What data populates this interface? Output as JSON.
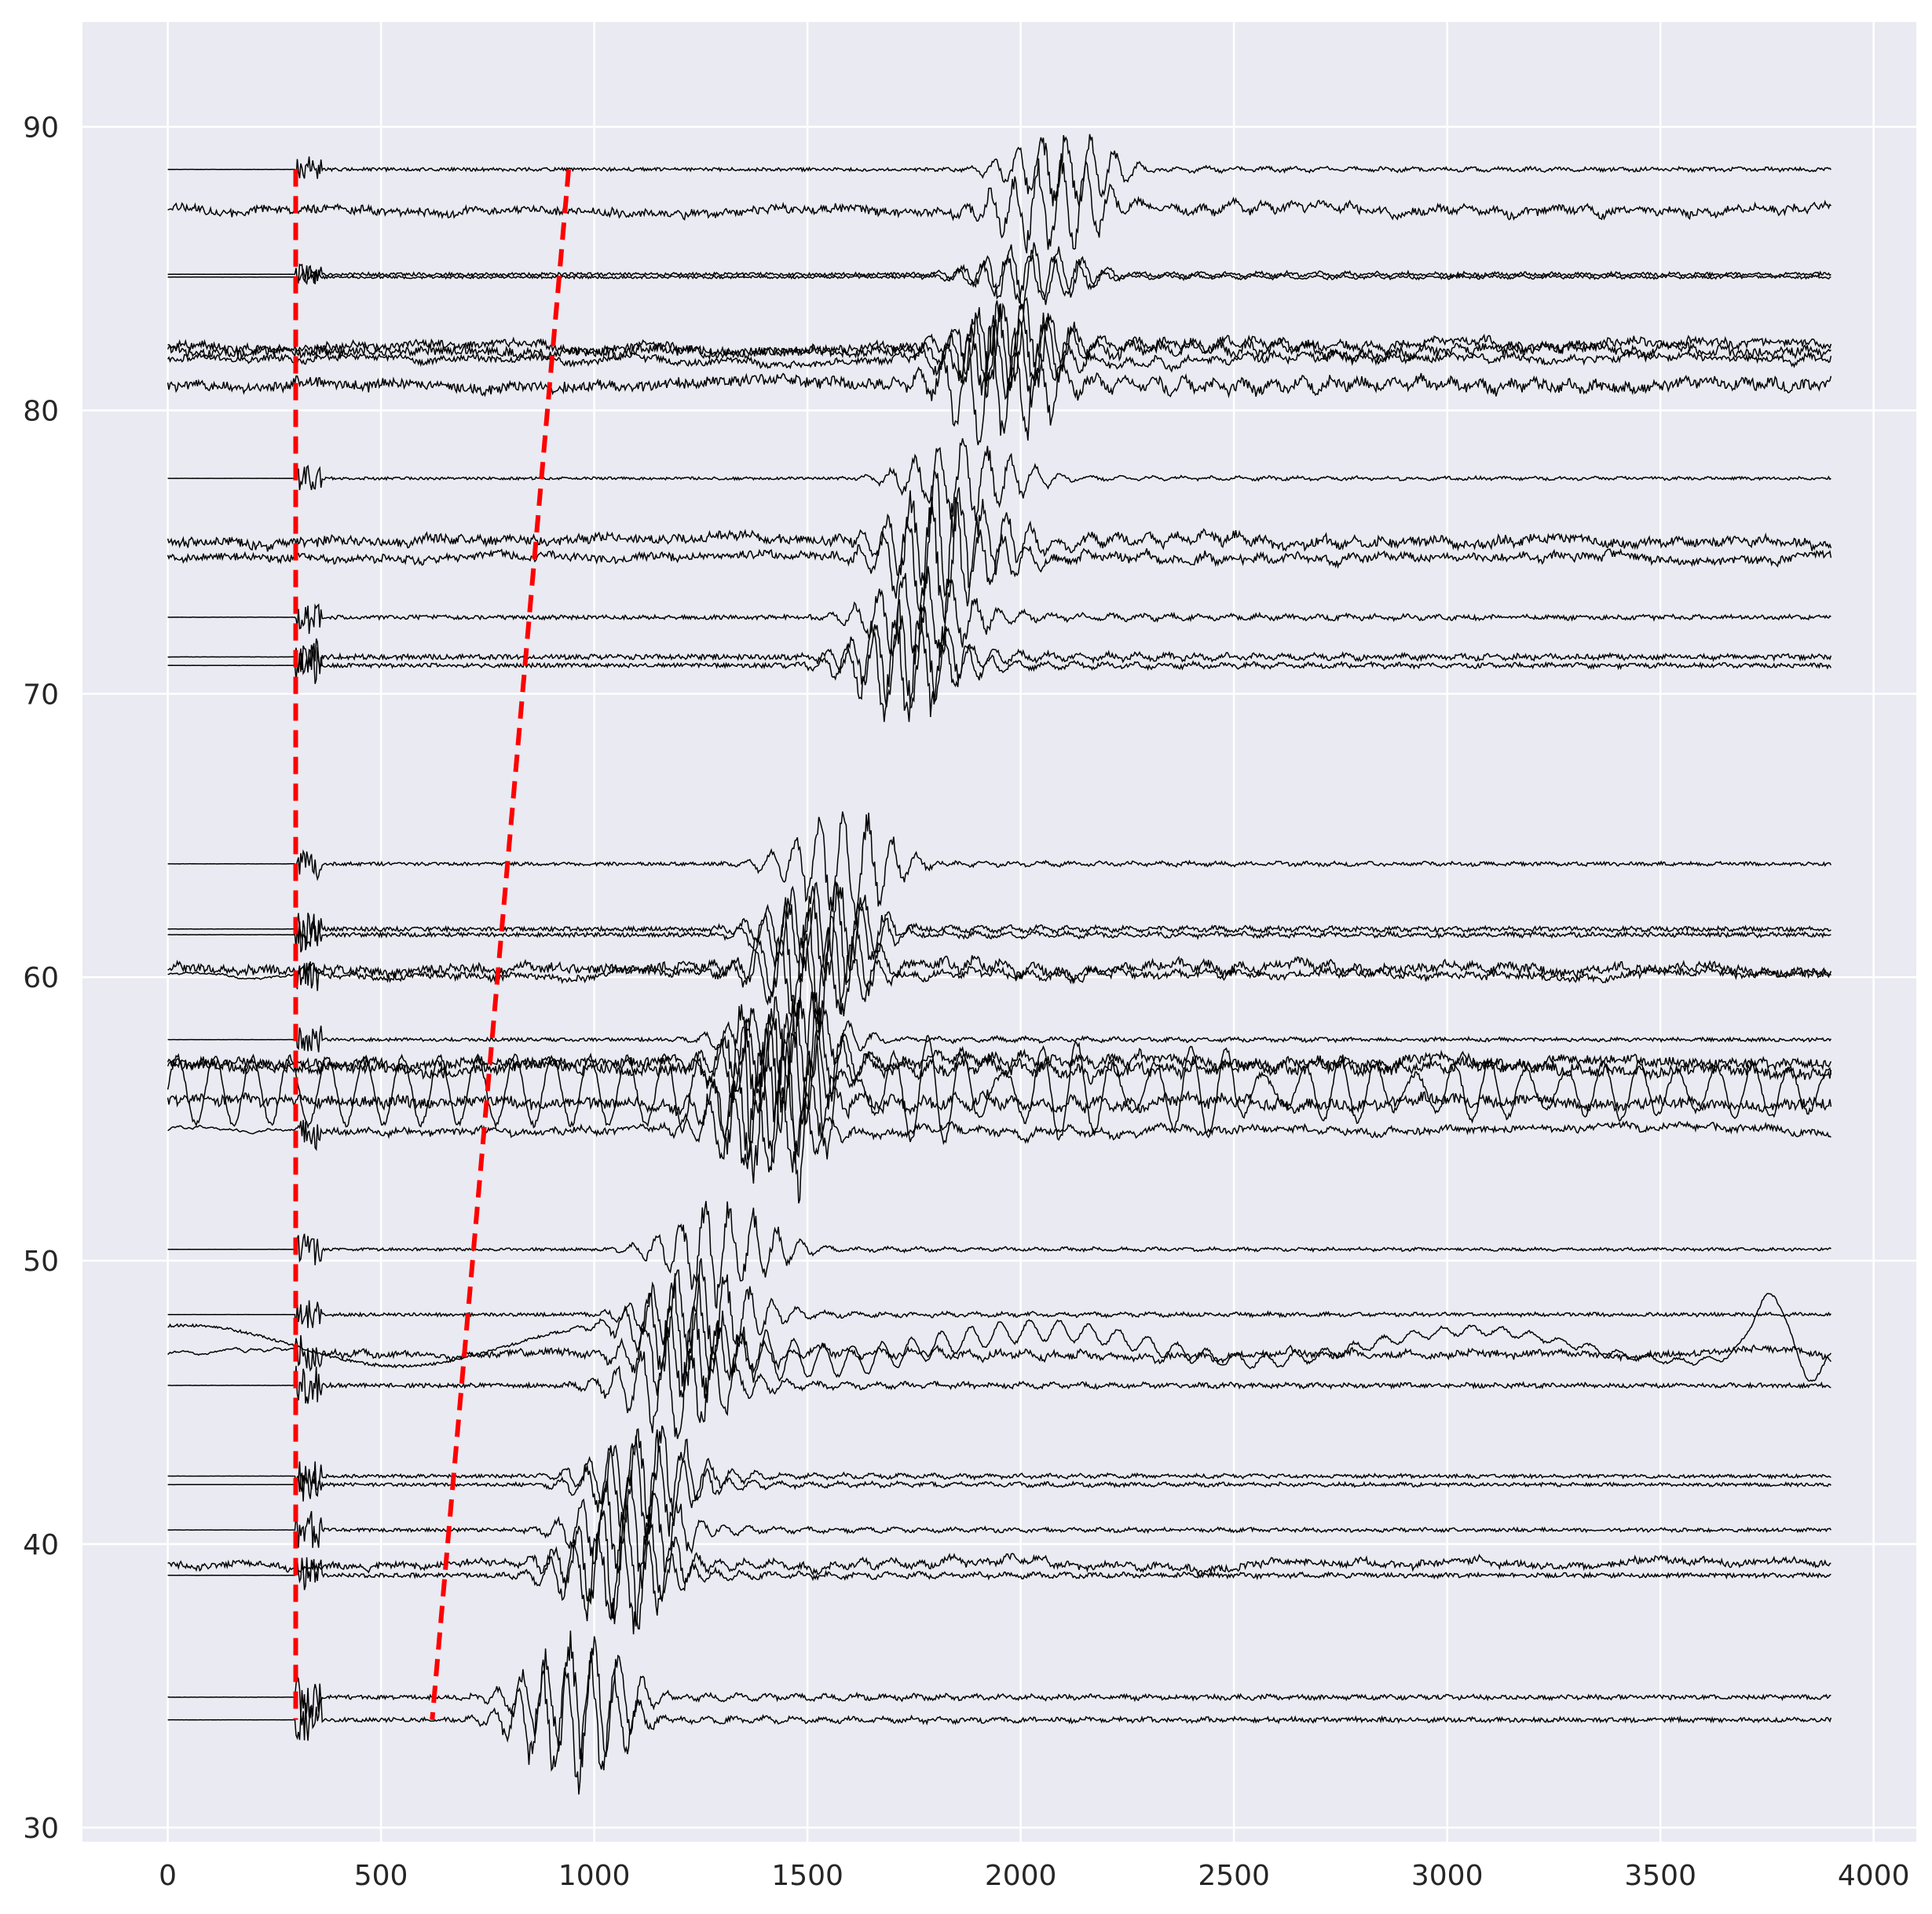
{
  "chart_data": {
    "type": "line",
    "title": "",
    "xlabel": "",
    "ylabel": "",
    "xlim": [
      -200,
      4100
    ],
    "ylim": [
      29.5,
      93.7
    ],
    "x_ticks": [
      0,
      500,
      1000,
      1500,
      2000,
      2500,
      3000,
      3500,
      4000
    ],
    "y_ticks": [
      30,
      40,
      50,
      60,
      70,
      80,
      90
    ],
    "grid": true,
    "legend": "none",
    "x_end": 3900,
    "traces": [
      {
        "base": 88.5,
        "amp": 0.12,
        "burst": 0.7,
        "onset": 300,
        "noise": "low"
      },
      {
        "base": 87.1,
        "amp": 0.25,
        "burst": 0.9,
        "onset": 0,
        "noise": "high"
      },
      {
        "base": 84.8,
        "amp": 0.12,
        "burst": 0.6,
        "onset": 300,
        "noise": "low"
      },
      {
        "base": 84.7,
        "amp": 0.1,
        "burst": 0.5,
        "onset": 300,
        "noise": "low"
      },
      {
        "base": 82.3,
        "amp": 0.25,
        "burst": 0.9,
        "onset": 0,
        "noise": "high"
      },
      {
        "base": 82.1,
        "amp": 0.3,
        "burst": 1.0,
        "onset": 0,
        "noise": "high"
      },
      {
        "base": 81.8,
        "amp": 0.2,
        "burst": 0.8,
        "onset": 0,
        "noise": "high"
      },
      {
        "base": 80.9,
        "amp": 0.35,
        "burst": 1.2,
        "onset": 0,
        "noise": "high"
      },
      {
        "base": 77.6,
        "amp": 0.1,
        "burst": 0.8,
        "onset": 300,
        "noise": "low"
      },
      {
        "base": 75.4,
        "amp": 0.3,
        "burst": 1.3,
        "onset": 0,
        "noise": "mid"
      },
      {
        "base": 74.8,
        "amp": 0.25,
        "burst": 1.2,
        "onset": 0,
        "noise": "mid"
      },
      {
        "base": 72.7,
        "amp": 0.15,
        "burst": 0.9,
        "onset": 300,
        "noise": "low"
      },
      {
        "base": 71.3,
        "amp": 0.18,
        "burst": 1.0,
        "onset": 300,
        "noise": "low"
      },
      {
        "base": 71.0,
        "amp": 0.15,
        "burst": 1.1,
        "onset": 300,
        "noise": "low"
      },
      {
        "base": 64.0,
        "amp": 0.12,
        "burst": 1.0,
        "onset": 300,
        "noise": "low"
      },
      {
        "base": 61.7,
        "amp": 0.15,
        "burst": 1.0,
        "onset": 300,
        "noise": "low"
      },
      {
        "base": 61.5,
        "amp": 0.15,
        "burst": 1.0,
        "onset": 300,
        "noise": "low"
      },
      {
        "base": 60.3,
        "amp": 0.3,
        "burst": 1.2,
        "onset": 0,
        "noise": "high"
      },
      {
        "base": 60.1,
        "amp": 0.2,
        "burst": 1.0,
        "onset": 300,
        "noise": "mid"
      },
      {
        "base": 57.8,
        "amp": 0.12,
        "burst": 0.8,
        "onset": 300,
        "noise": "low"
      },
      {
        "base": 57.0,
        "amp": 0.3,
        "burst": 1.2,
        "onset": 0,
        "noise": "mid"
      },
      {
        "base": 56.8,
        "amp": 0.35,
        "burst": 1.3,
        "onset": 0,
        "noise": "mid"
      },
      {
        "base": 56.0,
        "amp": 1.2,
        "burst": 1.5,
        "onset": 0,
        "noise": "osc"
      },
      {
        "base": 55.6,
        "amp": 0.35,
        "burst": 1.2,
        "onset": 0,
        "noise": "mid"
      },
      {
        "base": 54.6,
        "amp": 0.2,
        "burst": 1.0,
        "onset": 300,
        "noise": "mid"
      },
      {
        "base": 50.4,
        "amp": 0.1,
        "burst": 1.0,
        "onset": 300,
        "noise": "low"
      },
      {
        "base": 48.1,
        "amp": 0.12,
        "burst": 1.0,
        "onset": 300,
        "noise": "low"
      },
      {
        "base": 47.0,
        "amp": 0.9,
        "burst": 1.2,
        "onset": 0,
        "noise": "wave"
      },
      {
        "base": 46.7,
        "amp": 0.2,
        "burst": 1.0,
        "onset": 300,
        "noise": "mid"
      },
      {
        "base": 45.6,
        "amp": 0.15,
        "burst": 1.1,
        "onset": 300,
        "noise": "low"
      },
      {
        "base": 42.4,
        "amp": 0.12,
        "burst": 1.0,
        "onset": 300,
        "noise": "low"
      },
      {
        "base": 42.1,
        "amp": 0.12,
        "burst": 1.0,
        "onset": 300,
        "noise": "low"
      },
      {
        "base": 40.5,
        "amp": 0.12,
        "burst": 1.1,
        "onset": 300,
        "noise": "low"
      },
      {
        "base": 39.3,
        "amp": 0.2,
        "burst": 1.2,
        "onset": 0,
        "noise": "mid"
      },
      {
        "base": 38.9,
        "amp": 0.15,
        "burst": 1.1,
        "onset": 300,
        "noise": "low"
      },
      {
        "base": 34.6,
        "amp": 0.15,
        "burst": 1.2,
        "onset": 300,
        "noise": "low"
      },
      {
        "base": 33.8,
        "amp": 0.15,
        "burst": 1.3,
        "onset": 300,
        "noise": "low"
      }
    ],
    "markers": [
      {
        "points": [
          [
            300,
            88.5
          ],
          [
            300,
            33.8
          ]
        ],
        "color": "#ff0000",
        "style": "dashed"
      },
      {
        "points": [
          [
            940,
            88.5
          ],
          [
            620,
            33.8
          ]
        ],
        "color": "#ff0000",
        "style": "dashed"
      }
    ]
  },
  "colors": {
    "background": "#eaeaf2",
    "grid": "#ffffff",
    "trace": "#000000",
    "marker": "#ff0000"
  }
}
